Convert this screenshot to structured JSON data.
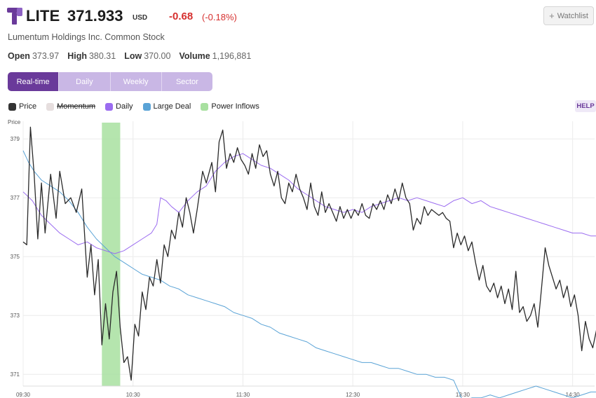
{
  "header": {
    "ticker": "LITE",
    "price": "371.933",
    "currency": "USD",
    "change": "-0.68",
    "change_pct": "(-0.18%)",
    "logo_icon": "lumentum-logo-icon",
    "brand_color": "#6a3a9a",
    "down_color": "#d6302f"
  },
  "watchlist": {
    "label": "Watchlist",
    "icon": "plus-icon"
  },
  "company_name": "Lumentum Holdings Inc. Common Stock",
  "stats": [
    {
      "label": "Open",
      "value": "373.97"
    },
    {
      "label": "High",
      "value": "380.31"
    },
    {
      "label": "Low",
      "value": "370.00"
    },
    {
      "label": "Volume",
      "value": "1,196,881"
    }
  ],
  "tabs": [
    {
      "label": "Real-time",
      "active": true
    },
    {
      "label": "Daily",
      "active": false
    },
    {
      "label": "Weekly",
      "active": false
    },
    {
      "label": "Sector",
      "active": false
    }
  ],
  "legend": [
    {
      "label": "Price",
      "color": "#333333",
      "disabled": false
    },
    {
      "label": "Momentum",
      "color": "#e6dede",
      "disabled": true
    },
    {
      "label": "Daily",
      "color": "#9b6cf0",
      "disabled": false
    },
    {
      "label": "Large Deal",
      "color": "#5aa3d6",
      "disabled": false
    },
    {
      "label": "Power Inflows",
      "color": "#a8e0a0",
      "disabled": false
    }
  ],
  "help_label": "HELP",
  "chart_data": {
    "type": "line",
    "ylabel": "Price",
    "ylim": [
      370.6,
      379.6
    ],
    "y_ticks": [
      "379",
      "377",
      "375",
      "373",
      "371"
    ],
    "y_tick_values": [
      379,
      377,
      375,
      373,
      371
    ],
    "x_ticks": [
      "09:30",
      "10:30",
      "11:30",
      "12:30",
      "13:30",
      "14:30"
    ],
    "x_tick_minutes": [
      0,
      60,
      120,
      180,
      240,
      300
    ],
    "xlim_minutes": [
      0,
      312
    ],
    "grid": true,
    "power_inflow_band_minutes": [
      43,
      53
    ],
    "series": [
      {
        "name": "Price",
        "color": "#2a2a2a",
        "points": [
          [
            0,
            375.5
          ],
          [
            2,
            375.4
          ],
          [
            4,
            379.4
          ],
          [
            6,
            377.8
          ],
          [
            8,
            375.6
          ],
          [
            10,
            377.5
          ],
          [
            12,
            375.8
          ],
          [
            15,
            377.8
          ],
          [
            18,
            376.3
          ],
          [
            20,
            377.9
          ],
          [
            23,
            376.8
          ],
          [
            26,
            377.0
          ],
          [
            29,
            376.5
          ],
          [
            32,
            377.3
          ],
          [
            35,
            374.3
          ],
          [
            37,
            375.4
          ],
          [
            39,
            373.7
          ],
          [
            41,
            374.9
          ],
          [
            43,
            372.0
          ],
          [
            45,
            373.4
          ],
          [
            47,
            372.2
          ],
          [
            49,
            373.8
          ],
          [
            51,
            374.5
          ],
          [
            53,
            372.6
          ],
          [
            55,
            371.4
          ],
          [
            57,
            371.6
          ],
          [
            59,
            370.8
          ],
          [
            61,
            372.7
          ],
          [
            63,
            372.3
          ],
          [
            65,
            373.8
          ],
          [
            67,
            373.2
          ],
          [
            69,
            374.3
          ],
          [
            71,
            374.0
          ],
          [
            73,
            374.9
          ],
          [
            75,
            374.1
          ],
          [
            77,
            375.4
          ],
          [
            79,
            375.0
          ],
          [
            81,
            375.9
          ],
          [
            83,
            375.6
          ],
          [
            85,
            376.5
          ],
          [
            87,
            376.0
          ],
          [
            89,
            377.0
          ],
          [
            91,
            376.5
          ],
          [
            93,
            375.8
          ],
          [
            95,
            376.6
          ],
          [
            98,
            377.9
          ],
          [
            100,
            377.5
          ],
          [
            103,
            378.2
          ],
          [
            105,
            377.2
          ],
          [
            107,
            378.9
          ],
          [
            109,
            379.3
          ],
          [
            111,
            378.0
          ],
          [
            113,
            378.5
          ],
          [
            115,
            378.2
          ],
          [
            117,
            378.7
          ],
          [
            119,
            378.3
          ],
          [
            121,
            378.1
          ],
          [
            123,
            377.8
          ],
          [
            125,
            378.5
          ],
          [
            127,
            378.0
          ],
          [
            129,
            378.8
          ],
          [
            131,
            378.4
          ],
          [
            133,
            378.6
          ],
          [
            135,
            377.8
          ],
          [
            137,
            377.4
          ],
          [
            139,
            377.9
          ],
          [
            141,
            377.0
          ],
          [
            143,
            376.8
          ],
          [
            145,
            377.5
          ],
          [
            147,
            377.2
          ],
          [
            149,
            377.8
          ],
          [
            151,
            377.3
          ],
          [
            153,
            377.0
          ],
          [
            155,
            376.6
          ],
          [
            157,
            377.5
          ],
          [
            159,
            376.7
          ],
          [
            161,
            376.4
          ],
          [
            163,
            377.2
          ],
          [
            165,
            376.5
          ],
          [
            167,
            376.8
          ],
          [
            169,
            376.5
          ],
          [
            171,
            376.2
          ],
          [
            173,
            376.7
          ],
          [
            175,
            376.3
          ],
          [
            177,
            376.6
          ],
          [
            179,
            376.3
          ],
          [
            181,
            376.6
          ],
          [
            183,
            376.4
          ],
          [
            185,
            376.8
          ],
          [
            187,
            376.4
          ],
          [
            189,
            376.3
          ],
          [
            191,
            376.8
          ],
          [
            193,
            376.6
          ],
          [
            195,
            376.9
          ],
          [
            197,
            376.6
          ],
          [
            199,
            377.1
          ],
          [
            201,
            376.8
          ],
          [
            203,
            377.3
          ],
          [
            205,
            376.9
          ],
          [
            207,
            377.5
          ],
          [
            209,
            377.0
          ],
          [
            211,
            376.8
          ],
          [
            213,
            375.9
          ],
          [
            215,
            376.3
          ],
          [
            217,
            376.1
          ],
          [
            219,
            376.7
          ],
          [
            221,
            376.4
          ],
          [
            223,
            376.6
          ],
          [
            225,
            376.5
          ],
          [
            227,
            376.4
          ],
          [
            229,
            376.5
          ],
          [
            231,
            376.3
          ],
          [
            233,
            376.2
          ],
          [
            235,
            375.3
          ],
          [
            237,
            375.8
          ],
          [
            239,
            375.4
          ],
          [
            241,
            375.7
          ],
          [
            243,
            375.2
          ],
          [
            245,
            375.5
          ],
          [
            247,
            374.8
          ],
          [
            249,
            374.2
          ],
          [
            251,
            374.7
          ],
          [
            253,
            374.0
          ],
          [
            255,
            373.8
          ],
          [
            257,
            374.1
          ],
          [
            259,
            373.6
          ],
          [
            261,
            374.0
          ],
          [
            263,
            373.4
          ],
          [
            265,
            373.9
          ],
          [
            267,
            373.2
          ],
          [
            269,
            374.5
          ],
          [
            271,
            373.1
          ],
          [
            273,
            373.3
          ],
          [
            275,
            372.8
          ],
          [
            277,
            373.0
          ],
          [
            279,
            373.4
          ],
          [
            281,
            372.6
          ],
          [
            283,
            373.9
          ],
          [
            285,
            375.3
          ],
          [
            287,
            374.7
          ],
          [
            289,
            374.3
          ],
          [
            291,
            373.9
          ],
          [
            293,
            374.2
          ],
          [
            295,
            373.6
          ],
          [
            297,
            374.0
          ],
          [
            299,
            373.3
          ],
          [
            301,
            373.7
          ],
          [
            303,
            373.0
          ],
          [
            305,
            371.8
          ],
          [
            307,
            372.8
          ],
          [
            309,
            372.2
          ],
          [
            311,
            371.9
          ],
          [
            313,
            372.5
          ]
        ]
      },
      {
        "name": "Daily",
        "color": "#9b6cf0",
        "points": [
          [
            0,
            377.2
          ],
          [
            5,
            376.9
          ],
          [
            10,
            376.4
          ],
          [
            15,
            376.1
          ],
          [
            20,
            375.8
          ],
          [
            25,
            375.6
          ],
          [
            30,
            375.4
          ],
          [
            35,
            375.5
          ],
          [
            40,
            375.3
          ],
          [
            45,
            375.2
          ],
          [
            50,
            375.1
          ],
          [
            55,
            375.2
          ],
          [
            60,
            375.4
          ],
          [
            65,
            375.6
          ],
          [
            70,
            375.8
          ],
          [
            73,
            376.1
          ],
          [
            75,
            377.0
          ],
          [
            78,
            376.9
          ],
          [
            81,
            376.7
          ],
          [
            85,
            376.5
          ],
          [
            90,
            376.9
          ],
          [
            95,
            377.2
          ],
          [
            100,
            377.4
          ],
          [
            105,
            377.9
          ],
          [
            110,
            378.2
          ],
          [
            115,
            378.4
          ],
          [
            120,
            378.5
          ],
          [
            125,
            378.3
          ],
          [
            130,
            378.1
          ],
          [
            135,
            378.0
          ],
          [
            140,
            377.8
          ],
          [
            145,
            377.6
          ],
          [
            150,
            377.3
          ],
          [
            155,
            377.1
          ],
          [
            160,
            376.9
          ],
          [
            165,
            376.7
          ],
          [
            170,
            376.6
          ],
          [
            175,
            376.5
          ],
          [
            180,
            376.6
          ],
          [
            185,
            376.5
          ],
          [
            190,
            376.7
          ],
          [
            195,
            376.8
          ],
          [
            200,
            376.9
          ],
          [
            205,
            377.0
          ],
          [
            210,
            376.9
          ],
          [
            215,
            377.0
          ],
          [
            220,
            376.9
          ],
          [
            225,
            376.8
          ],
          [
            230,
            376.7
          ],
          [
            235,
            376.9
          ],
          [
            240,
            377.0
          ],
          [
            245,
            376.8
          ],
          [
            250,
            376.9
          ],
          [
            255,
            376.7
          ],
          [
            260,
            376.6
          ],
          [
            265,
            376.5
          ],
          [
            270,
            376.4
          ],
          [
            275,
            376.3
          ],
          [
            280,
            376.2
          ],
          [
            285,
            376.1
          ],
          [
            290,
            376.0
          ],
          [
            295,
            375.9
          ],
          [
            300,
            375.8
          ],
          [
            305,
            375.8
          ],
          [
            310,
            375.7
          ],
          [
            313,
            375.7
          ]
        ]
      },
      {
        "name": "Large Deal",
        "color": "#5aa3d6",
        "points": [
          [
            0,
            378.6
          ],
          [
            3,
            378.2
          ],
          [
            6,
            377.9
          ],
          [
            10,
            377.6
          ],
          [
            15,
            377.4
          ],
          [
            20,
            377.2
          ],
          [
            25,
            376.9
          ],
          [
            30,
            376.5
          ],
          [
            35,
            376.0
          ],
          [
            40,
            375.6
          ],
          [
            45,
            375.3
          ],
          [
            50,
            375.0
          ],
          [
            55,
            374.8
          ],
          [
            60,
            374.6
          ],
          [
            65,
            374.4
          ],
          [
            70,
            374.3
          ],
          [
            75,
            374.2
          ],
          [
            80,
            374.0
          ],
          [
            85,
            373.9
          ],
          [
            90,
            373.7
          ],
          [
            95,
            373.6
          ],
          [
            100,
            373.5
          ],
          [
            105,
            373.4
          ],
          [
            110,
            373.3
          ],
          [
            115,
            373.1
          ],
          [
            120,
            373.0
          ],
          [
            125,
            372.9
          ],
          [
            130,
            372.7
          ],
          [
            135,
            372.6
          ],
          [
            140,
            372.4
          ],
          [
            145,
            372.3
          ],
          [
            150,
            372.2
          ],
          [
            155,
            372.1
          ],
          [
            160,
            371.9
          ],
          [
            165,
            371.8
          ],
          [
            170,
            371.7
          ],
          [
            175,
            371.6
          ],
          [
            180,
            371.5
          ],
          [
            185,
            371.4
          ],
          [
            190,
            371.4
          ],
          [
            195,
            371.3
          ],
          [
            200,
            371.2
          ],
          [
            205,
            371.2
          ],
          [
            210,
            371.1
          ],
          [
            215,
            371.0
          ],
          [
            220,
            371.0
          ],
          [
            225,
            370.9
          ],
          [
            230,
            370.9
          ],
          [
            235,
            370.8
          ],
          [
            240,
            370.1
          ],
          [
            245,
            370.2
          ],
          [
            250,
            370.2
          ],
          [
            255,
            370.3
          ],
          [
            260,
            370.2
          ],
          [
            265,
            370.3
          ],
          [
            270,
            370.4
          ],
          [
            275,
            370.5
          ],
          [
            280,
            370.6
          ],
          [
            285,
            370.5
          ],
          [
            290,
            370.4
          ],
          [
            295,
            370.3
          ],
          [
            300,
            370.2
          ],
          [
            305,
            370.3
          ],
          [
            310,
            370.4
          ],
          [
            313,
            370.4
          ]
        ]
      }
    ]
  }
}
